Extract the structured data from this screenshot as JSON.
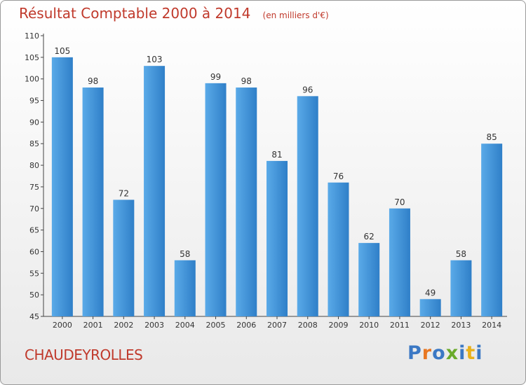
{
  "chart_data": {
    "type": "bar",
    "title": "Résultat Comptable 2000 à 2014",
    "subtitle": "(en milliers d'€)",
    "categories": [
      "2000",
      "2001",
      "2002",
      "2003",
      "2004",
      "2005",
      "2006",
      "2007",
      "2008",
      "2009",
      "2010",
      "2011",
      "2012",
      "2013",
      "2014"
    ],
    "values": [
      105,
      98,
      72,
      103,
      58,
      99,
      98,
      81,
      96,
      76,
      62,
      70,
      49,
      58,
      85
    ],
    "yticks": [
      45,
      50,
      55,
      60,
      65,
      70,
      75,
      80,
      85,
      90,
      95,
      100,
      105,
      110
    ],
    "ylim": [
      45,
      110
    ],
    "xlabel": "",
    "ylabel": "",
    "grid": false,
    "bar_color": "#3d8ed6"
  },
  "footer": {
    "town": "CHAUDEYROLLES",
    "logo": "Proxiti"
  }
}
